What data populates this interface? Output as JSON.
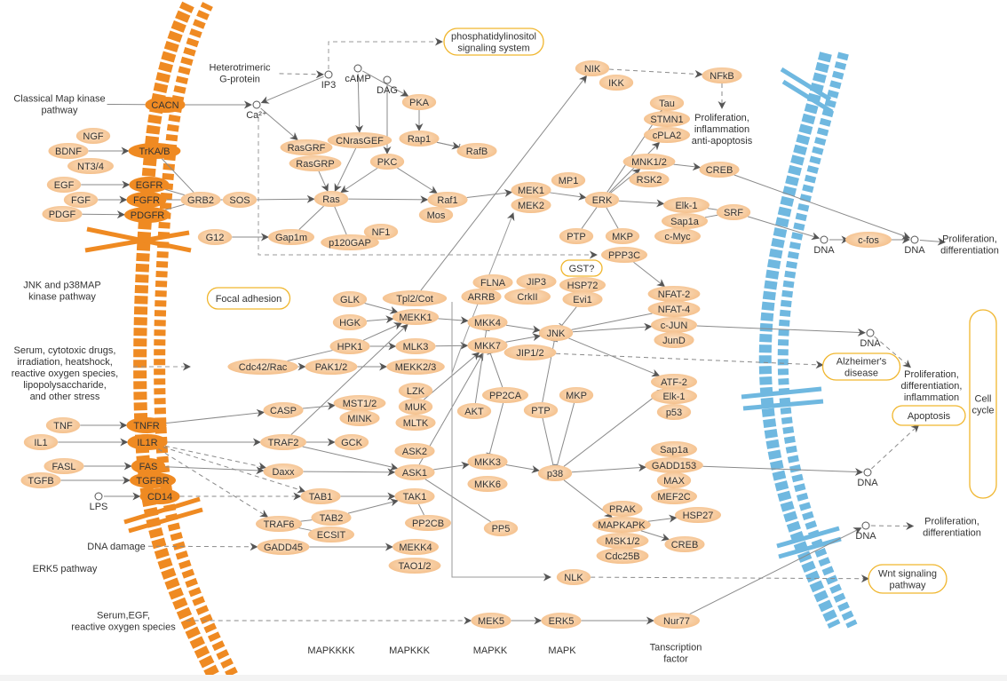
{
  "colors": {
    "protein": "#f7c79a",
    "receptor": "#ef8a22",
    "pathway_border": "#f0b62e",
    "cell_membrane": "#ef8a22",
    "nuclear_membrane": "#6fb8e0",
    "edge": "#8a8a8a",
    "arrow": "#555555"
  },
  "membranes": {
    "cell": "cellmembrane",
    "nuclear": "nuclearmembrane"
  },
  "nodes": [
    {
      "id": "CACN",
      "label": "CACN",
      "kind": "receptor"
    },
    {
      "id": "NGF",
      "label": "NGF",
      "kind": "protein"
    },
    {
      "id": "BDNF",
      "label": "BDNF",
      "kind": "protein"
    },
    {
      "id": "NT34",
      "label": "NT3/4",
      "kind": "protein"
    },
    {
      "id": "TrKAB",
      "label": "TrKA/B",
      "kind": "receptor"
    },
    {
      "id": "EGF",
      "label": "EGF",
      "kind": "protein"
    },
    {
      "id": "FGF",
      "label": "FGF",
      "kind": "protein"
    },
    {
      "id": "PDGF",
      "label": "PDGF",
      "kind": "protein"
    },
    {
      "id": "EGFR",
      "label": "EGFR",
      "kind": "receptor"
    },
    {
      "id": "FGFR",
      "label": "FGFR",
      "kind": "receptor"
    },
    {
      "id": "PDGFR",
      "label": "PDGFR",
      "kind": "receptor"
    },
    {
      "id": "GRB2",
      "label": "GRB2",
      "kind": "protein"
    },
    {
      "id": "SOS",
      "label": "SOS",
      "kind": "protein"
    },
    {
      "id": "G12",
      "label": "G12",
      "kind": "protein"
    },
    {
      "id": "Gap1m",
      "label": "Gap1m",
      "kind": "protein"
    },
    {
      "id": "p120GAP",
      "label": "p120GAP",
      "kind": "protein"
    },
    {
      "id": "NF1",
      "label": "NF1",
      "kind": "protein"
    },
    {
      "id": "RasGRF",
      "label": "RasGRF",
      "kind": "protein"
    },
    {
      "id": "RasGRP",
      "label": "RasGRP",
      "kind": "protein"
    },
    {
      "id": "CNrasGEF",
      "label": "CNrasGEF",
      "kind": "protein"
    },
    {
      "id": "PKC",
      "label": "PKC",
      "kind": "protein"
    },
    {
      "id": "PKA",
      "label": "PKA",
      "kind": "protein"
    },
    {
      "id": "Rap1",
      "label": "Rap1",
      "kind": "protein"
    },
    {
      "id": "RafB",
      "label": "RafB",
      "kind": "protein"
    },
    {
      "id": "Ras",
      "label": "Ras",
      "kind": "protein"
    },
    {
      "id": "Raf1",
      "label": "Raf1",
      "kind": "protein"
    },
    {
      "id": "Mos",
      "label": "Mos",
      "kind": "protein"
    },
    {
      "id": "MEK1",
      "label": "MEK1",
      "kind": "protein"
    },
    {
      "id": "MEK2",
      "label": "MEK2",
      "kind": "protein"
    },
    {
      "id": "MP1",
      "label": "MP1",
      "kind": "protein"
    },
    {
      "id": "ERK",
      "label": "ERK",
      "kind": "protein"
    },
    {
      "id": "PTP1",
      "label": "PTP",
      "kind": "protein"
    },
    {
      "id": "MKP1",
      "label": "MKP",
      "kind": "protein"
    },
    {
      "id": "NIK",
      "label": "NIK",
      "kind": "protein"
    },
    {
      "id": "IKK",
      "label": "IKK",
      "kind": "protein"
    },
    {
      "id": "NFkB",
      "label": "NFkB",
      "kind": "protein"
    },
    {
      "id": "Tau",
      "label": "Tau",
      "kind": "protein"
    },
    {
      "id": "STMN1",
      "label": "STMN1",
      "kind": "protein"
    },
    {
      "id": "cPLA2",
      "label": "cPLA2",
      "kind": "protein"
    },
    {
      "id": "MNK12",
      "label": "MNK1/2",
      "kind": "protein"
    },
    {
      "id": "RSK2",
      "label": "RSK2",
      "kind": "protein"
    },
    {
      "id": "CREB1",
      "label": "CREB",
      "kind": "protein"
    },
    {
      "id": "Elk1a",
      "label": "Elk-1",
      "kind": "protein"
    },
    {
      "id": "Sap1a1",
      "label": "Sap1a",
      "kind": "protein"
    },
    {
      "id": "cMyc",
      "label": "c-Myc",
      "kind": "protein"
    },
    {
      "id": "SRF",
      "label": "SRF",
      "kind": "protein"
    },
    {
      "id": "cfos",
      "label": "c-fos",
      "kind": "protein"
    },
    {
      "id": "PPP3C",
      "label": "PPP3C",
      "kind": "protein"
    },
    {
      "id": "HSP72",
      "label": "HSP72",
      "kind": "protein"
    },
    {
      "id": "Evi1",
      "label": "Evi1",
      "kind": "protein"
    },
    {
      "id": "FLNA",
      "label": "FLNA",
      "kind": "protein"
    },
    {
      "id": "JIP3",
      "label": "JIP3",
      "kind": "protein"
    },
    {
      "id": "ARRB",
      "label": "ARRB",
      "kind": "protein"
    },
    {
      "id": "CrkII",
      "label": "CrkII",
      "kind": "protein"
    },
    {
      "id": "GLK",
      "label": "GLK",
      "kind": "protein"
    },
    {
      "id": "Tpl2",
      "label": "Tpl2/Cot",
      "kind": "protein"
    },
    {
      "id": "HGK",
      "label": "HGK",
      "kind": "protein"
    },
    {
      "id": "MEKK1",
      "label": "MEKK1",
      "kind": "protein"
    },
    {
      "id": "HPK1",
      "label": "HPK1",
      "kind": "protein"
    },
    {
      "id": "MLK3",
      "label": "MLK3",
      "kind": "protein"
    },
    {
      "id": "Cdc42",
      "label": "Cdc42/Rac",
      "kind": "protein"
    },
    {
      "id": "PAK12",
      "label": "PAK1/2",
      "kind": "protein"
    },
    {
      "id": "MEKK23",
      "label": "MEKK2/3",
      "kind": "protein"
    },
    {
      "id": "LZK",
      "label": "LZK",
      "kind": "protein"
    },
    {
      "id": "MUK",
      "label": "MUK",
      "kind": "protein"
    },
    {
      "id": "MLTK",
      "label": "MLTK",
      "kind": "protein"
    },
    {
      "id": "ASK2",
      "label": "ASK2",
      "kind": "protein"
    },
    {
      "id": "ASK1",
      "label": "ASK1",
      "kind": "protein"
    },
    {
      "id": "TAK1",
      "label": "TAK1",
      "kind": "protein"
    },
    {
      "id": "PP2CB",
      "label": "PP2CB",
      "kind": "protein"
    },
    {
      "id": "MEKK4",
      "label": "MEKK4",
      "kind": "protein"
    },
    {
      "id": "TAO12",
      "label": "TAO1/2",
      "kind": "protein"
    },
    {
      "id": "CASP",
      "label": "CASP",
      "kind": "protein"
    },
    {
      "id": "MST12",
      "label": "MST1/2",
      "kind": "protein"
    },
    {
      "id": "MINK",
      "label": "MINK",
      "kind": "protein"
    },
    {
      "id": "TRAF2",
      "label": "TRAF2",
      "kind": "protein"
    },
    {
      "id": "GCK",
      "label": "GCK",
      "kind": "protein"
    },
    {
      "id": "Daxx",
      "label": "Daxx",
      "kind": "protein"
    },
    {
      "id": "TAB1",
      "label": "TAB1",
      "kind": "protein"
    },
    {
      "id": "TRAF6",
      "label": "TRAF6",
      "kind": "protein"
    },
    {
      "id": "TAB2",
      "label": "TAB2",
      "kind": "protein"
    },
    {
      "id": "ECSIT",
      "label": "ECSIT",
      "kind": "protein"
    },
    {
      "id": "GADD45",
      "label": "GADD45",
      "kind": "protein"
    },
    {
      "id": "TNF",
      "label": "TNF",
      "kind": "protein"
    },
    {
      "id": "IL1",
      "label": "IL1",
      "kind": "protein"
    },
    {
      "id": "FASL",
      "label": "FASL",
      "kind": "protein"
    },
    {
      "id": "TGFB",
      "label": "TGFB",
      "kind": "protein"
    },
    {
      "id": "TNFR",
      "label": "TNFR",
      "kind": "receptor"
    },
    {
      "id": "IL1R",
      "label": "IL1R",
      "kind": "receptor"
    },
    {
      "id": "FAS",
      "label": "FAS",
      "kind": "receptor"
    },
    {
      "id": "TGFBR",
      "label": "TGFBR",
      "kind": "receptor"
    },
    {
      "id": "CD14",
      "label": "CD14",
      "kind": "receptor"
    },
    {
      "id": "MKK4",
      "label": "MKK4",
      "kind": "protein"
    },
    {
      "id": "MKK7",
      "label": "MKK7",
      "kind": "protein"
    },
    {
      "id": "JIP12",
      "label": "JIP1/2",
      "kind": "protein"
    },
    {
      "id": "JNK",
      "label": "JNK",
      "kind": "protein"
    },
    {
      "id": "PP2CA",
      "label": "PP2CA",
      "kind": "protein"
    },
    {
      "id": "AKT",
      "label": "AKT",
      "kind": "protein"
    },
    {
      "id": "PTP2",
      "label": "PTP",
      "kind": "protein"
    },
    {
      "id": "MKP2",
      "label": "MKP",
      "kind": "protein"
    },
    {
      "id": "MKK3",
      "label": "MKK3",
      "kind": "protein"
    },
    {
      "id": "MKK6",
      "label": "MKK6",
      "kind": "protein"
    },
    {
      "id": "p38",
      "label": "p38",
      "kind": "protein"
    },
    {
      "id": "PP5",
      "label": "PP5",
      "kind": "protein"
    },
    {
      "id": "NFAT2",
      "label": "NFAT-2",
      "kind": "protein"
    },
    {
      "id": "NFAT4",
      "label": "NFAT-4",
      "kind": "protein"
    },
    {
      "id": "cJUN",
      "label": "c-JUN",
      "kind": "protein"
    },
    {
      "id": "JunD",
      "label": "JunD",
      "kind": "protein"
    },
    {
      "id": "ATF2",
      "label": "ATF-2",
      "kind": "protein"
    },
    {
      "id": "Elk1b",
      "label": "Elk-1",
      "kind": "protein"
    },
    {
      "id": "p53",
      "label": "p53",
      "kind": "protein"
    },
    {
      "id": "Sap1a2",
      "label": "Sap1a",
      "kind": "protein"
    },
    {
      "id": "GADD153",
      "label": "GADD153",
      "kind": "protein"
    },
    {
      "id": "MAX",
      "label": "MAX",
      "kind": "protein"
    },
    {
      "id": "MEF2C",
      "label": "MEF2C",
      "kind": "protein"
    },
    {
      "id": "PRAK",
      "label": "PRAK",
      "kind": "protein"
    },
    {
      "id": "MAPKAPK",
      "label": "MAPKAPK",
      "kind": "protein"
    },
    {
      "id": "MSK12",
      "label": "MSK1/2",
      "kind": "protein"
    },
    {
      "id": "Cdc25B",
      "label": "Cdc25B",
      "kind": "protein"
    },
    {
      "id": "HSP27",
      "label": "HSP27",
      "kind": "protein"
    },
    {
      "id": "CREB2",
      "label": "CREB",
      "kind": "protein"
    },
    {
      "id": "NLK",
      "label": "NLK",
      "kind": "protein"
    },
    {
      "id": "MEK5",
      "label": "MEK5",
      "kind": "protein"
    },
    {
      "id": "ERK5",
      "label": "ERK5",
      "kind": "protein"
    },
    {
      "id": "Nur77",
      "label": "Nur77",
      "kind": "protein"
    }
  ],
  "pathways": [
    {
      "id": "pi",
      "lines": [
        "phosphatidylinositol",
        "signaling system"
      ]
    },
    {
      "id": "focal",
      "lines": [
        "Focal adhesion"
      ]
    },
    {
      "id": "gst",
      "lines": [
        "GST?"
      ]
    },
    {
      "id": "alz",
      "lines": [
        "Alzheimer's",
        "disease"
      ]
    },
    {
      "id": "apop",
      "lines": [
        "Apoptosis"
      ]
    },
    {
      "id": "wnt",
      "lines": [
        "Wnt signaling",
        "pathway"
      ]
    },
    {
      "id": "cellcycle",
      "lines": [
        "Cell",
        "cycle"
      ]
    }
  ],
  "compounds": [
    {
      "id": "IP3",
      "label": "IP3"
    },
    {
      "id": "cAMP",
      "label": "cAMP"
    },
    {
      "id": "DAG",
      "label": "DAG"
    },
    {
      "id": "Ca",
      "label": "Ca²⁺"
    },
    {
      "id": "LPS",
      "label": "LPS"
    },
    {
      "id": "DNA1",
      "label": "DNA"
    },
    {
      "id": "DNA2",
      "label": "DNA"
    },
    {
      "id": "DNA3",
      "label": "DNA"
    },
    {
      "id": "DNA4",
      "label": "DNA"
    },
    {
      "id": "DNA5",
      "label": "DNA"
    }
  ],
  "texts": [
    {
      "id": "classical",
      "lines": [
        "Classical Map kinase",
        "pathway"
      ]
    },
    {
      "id": "hetero",
      "lines": [
        "Heterotrimeric",
        "G-protein"
      ]
    },
    {
      "id": "jnkp38",
      "lines": [
        "JNK and p38MAP",
        "kinase pathway"
      ]
    },
    {
      "id": "stress",
      "lines": [
        "Serum, cytotoxic drugs,",
        "irradiation, heatshock,",
        "reactive oxygen species,",
        "lipopolysaccharide,",
        "and other stress"
      ]
    },
    {
      "id": "dnadamage",
      "lines": [
        "DNA  damage"
      ]
    },
    {
      "id": "erk5path",
      "lines": [
        "ERK5 pathway"
      ]
    },
    {
      "id": "serum",
      "lines": [
        "Serum,EGF,",
        "reactive oxygen species"
      ]
    },
    {
      "id": "prolif1",
      "lines": [
        "Proliferation,",
        "inflammation",
        "anti-apoptosis"
      ]
    },
    {
      "id": "prolif2",
      "lines": [
        "Proliferation,",
        "differentiation"
      ]
    },
    {
      "id": "prolif3",
      "lines": [
        "Proliferation,",
        "differentiation,",
        "inflammation"
      ]
    },
    {
      "id": "prolif4",
      "lines": [
        "Proliferation,",
        "differentiation"
      ]
    },
    {
      "id": "mapkkkk",
      "lines": [
        "MAPKKKK"
      ]
    },
    {
      "id": "mapkkk",
      "lines": [
        "MAPKKK"
      ]
    },
    {
      "id": "mapkk",
      "lines": [
        "MAPKK"
      ]
    },
    {
      "id": "mapk",
      "lines": [
        "MAPK"
      ]
    },
    {
      "id": "tf",
      "lines": [
        "Tanscription",
        "factor"
      ]
    }
  ],
  "edges": [
    [
      "classical",
      "CACN",
      "line"
    ],
    [
      "CACN",
      "Ca",
      "arrow"
    ],
    [
      "hetero",
      "IP3",
      "dashed"
    ],
    [
      "IP3",
      "Ca",
      "arrow"
    ],
    [
      "Ca",
      "RasGRF",
      "arrow"
    ],
    [
      "BDNF",
      "TrKAB",
      "arrow"
    ],
    [
      "EGF",
      "EGFR",
      "arrow"
    ],
    [
      "FGF",
      "FGFR",
      "arrow"
    ],
    [
      "PDGF",
      "PDGFR",
      "arrow"
    ],
    [
      "TrKAB",
      "GRB2",
      "line"
    ],
    [
      "EGFR",
      "GRB2",
      "line"
    ],
    [
      "FGFR",
      "GRB2",
      "line"
    ],
    [
      "PDGFR",
      "GRB2",
      "line"
    ],
    [
      "GRB2",
      "SOS",
      "line"
    ],
    [
      "SOS",
      "Ras",
      "arrow"
    ],
    [
      "G12",
      "Gap1m",
      "arrow"
    ],
    [
      "Gap1m",
      "Ras",
      "line"
    ],
    [
      "p120GAP",
      "Ras",
      "line"
    ],
    [
      "cAMP",
      "CNrasGEF",
      "arrow"
    ],
    [
      "cAMP",
      "PKA",
      "arrow"
    ],
    [
      "DAG",
      "PKC",
      "arrow"
    ],
    [
      "PKA",
      "Rap1",
      "arrow"
    ],
    [
      "Rap1",
      "RafB",
      "inhibit"
    ],
    [
      "Rap1",
      "RafB",
      "arrow"
    ],
    [
      "CNrasGEF",
      "Ras",
      "arrow"
    ],
    [
      "RasGRP",
      "Ras",
      "arrow"
    ],
    [
      "PKC",
      "Ras",
      "arrow"
    ],
    [
      "PKC",
      "Raf1",
      "arrow"
    ],
    [
      "Ras",
      "Raf1",
      "arrow"
    ],
    [
      "Raf1",
      "MEK1",
      "arrow"
    ],
    [
      "MEK1",
      "ERK",
      "arrow"
    ],
    [
      "ERK",
      "PTP1",
      "line"
    ],
    [
      "ERK",
      "MKP1",
      "line"
    ],
    [
      "ERK",
      "Tau",
      "arrow"
    ],
    [
      "ERK",
      "cPLA2",
      "arrow"
    ],
    [
      "ERK",
      "MNK12",
      "arrow"
    ],
    [
      "ERK",
      "Elk1a",
      "arrow"
    ],
    [
      "MNK12",
      "CREB1",
      "arrow"
    ],
    [
      "Elk1a",
      "SRF",
      "line"
    ],
    [
      "Sap1a1",
      "SRF",
      "line"
    ],
    [
      "SRF",
      "DNA1",
      "arrow"
    ],
    [
      "DNA1",
      "cfos",
      "arrow"
    ],
    [
      "cfos",
      "DNA2",
      "arrow"
    ],
    [
      "CREB1",
      "DNA2",
      "arrow"
    ],
    [
      "DNA2",
      "prolif2",
      "arrow"
    ],
    [
      "NIK",
      "NFkB",
      "dashed"
    ],
    [
      "NFkB",
      "prolif1",
      "dashed"
    ],
    [
      "PPP3C",
      "NFAT2",
      "arrow"
    ],
    [
      "Tpl2",
      "NIK",
      "arrow"
    ],
    [
      "TNF",
      "TNFR",
      "arrow"
    ],
    [
      "IL1",
      "IL1R",
      "arrow"
    ],
    [
      "FASL",
      "FAS",
      "arrow"
    ],
    [
      "TGFB",
      "TGFBR",
      "arrow"
    ],
    [
      "LPS",
      "CD14",
      "arrow"
    ],
    [
      "TNFR",
      "CASP",
      "arrow"
    ],
    [
      "IL1R",
      "TRAF2",
      "arrow"
    ],
    [
      "IL1R",
      "Daxx",
      "dashed"
    ],
    [
      "IL1R",
      "TAB1",
      "dashed"
    ],
    [
      "IL1R",
      "TRAF6",
      "dashed"
    ],
    [
      "FAS",
      "Daxx",
      "arrow"
    ],
    [
      "CD14",
      "TAB1",
      "dashed"
    ],
    [
      "CASP",
      "MST12",
      "arrow"
    ],
    [
      "TRAF2",
      "GCK",
      "arrow"
    ],
    [
      "TRAF2",
      "ASK1",
      "arrow"
    ],
    [
      "TRAF2",
      "MEKK1",
      "arrow"
    ],
    [
      "Daxx",
      "ASK1",
      "arrow"
    ],
    [
      "TAB1",
      "TAK1",
      "arrow"
    ],
    [
      "TRAF6",
      "TAB2",
      "line"
    ],
    [
      "TRAF6",
      "ECSIT",
      "line"
    ],
    [
      "TAB2",
      "TAK1",
      "arrow"
    ],
    [
      "GADD45",
      "MEKK4",
      "arrow"
    ],
    [
      "dnadamage",
      "GADD45",
      "dashed"
    ],
    [
      "Cdc42",
      "PAK12",
      "arrow"
    ],
    [
      "Cdc42",
      "HPK1",
      "line"
    ],
    [
      "PAK12",
      "MEKK23",
      "arrow"
    ],
    [
      "HPK1",
      "MLK3",
      "arrow"
    ],
    [
      "HPK1",
      "MEKK1",
      "arrow"
    ],
    [
      "GLK",
      "MEKK1",
      "arrow"
    ],
    [
      "HGK",
      "MEKK1",
      "arrow"
    ],
    [
      "MEKK1",
      "MKK4",
      "arrow"
    ],
    [
      "MLK3",
      "MKK7",
      "arrow"
    ],
    [
      "MUK",
      "MKK7",
      "arrow"
    ],
    [
      "ASK1",
      "MKK7",
      "arrow"
    ],
    [
      "ASK1",
      "MKK3",
      "arrow"
    ],
    [
      "ASK1",
      "PP5",
      "line"
    ],
    [
      "TAK1",
      "PP2CB",
      "line"
    ],
    [
      "MKK4",
      "JNK",
      "arrow"
    ],
    [
      "MKK7",
      "JNK",
      "arrow"
    ],
    [
      "JNK",
      "cJUN",
      "arrow"
    ],
    [
      "JNK",
      "NFAT4",
      "line"
    ],
    [
      "JNK",
      "ATF2",
      "arrow"
    ],
    [
      "Evi1",
      "JNK",
      "inhibit"
    ],
    [
      "PTP2",
      "JNK",
      "inhibit"
    ],
    [
      "MKK3",
      "p38",
      "arrow"
    ],
    [
      "p38",
      "ATF2",
      "arrow"
    ],
    [
      "p38",
      "GADD153",
      "arrow"
    ],
    [
      "p38",
      "MAPKAPK",
      "arrow"
    ],
    [
      "PTP2",
      "p38",
      "inhibit"
    ],
    [
      "MKP2",
      "p38",
      "inhibit"
    ],
    [
      "PP2CA",
      "MKK3",
      "inhibit"
    ],
    [
      "PP2CA",
      "MKK7",
      "inhibit"
    ],
    [
      "AKT",
      "MKK4",
      "inhibit"
    ],
    [
      "MAPKAPK",
      "HSP27",
      "arrow"
    ],
    [
      "MAPKAPK",
      "CREB2",
      "arrow"
    ],
    [
      "cJUN",
      "DNA3",
      "arrow"
    ],
    [
      "GADD153",
      "DNA4",
      "arrow"
    ],
    [
      "DNA3",
      "prolif3",
      "dashed"
    ],
    [
      "DNA4",
      "apop",
      "dashed"
    ],
    [
      "JIP12",
      "alz",
      "dashed"
    ],
    [
      "NLK",
      "wnt",
      "dashed"
    ],
    [
      "serum",
      "MEK5",
      "dashed"
    ],
    [
      "MEK5",
      "ERK5",
      "arrow"
    ],
    [
      "ERK5",
      "Nur77",
      "arrow"
    ],
    [
      "Nur77",
      "DNA5",
      "arrow"
    ],
    [
      "DNA5",
      "prolif4",
      "dashed"
    ]
  ]
}
